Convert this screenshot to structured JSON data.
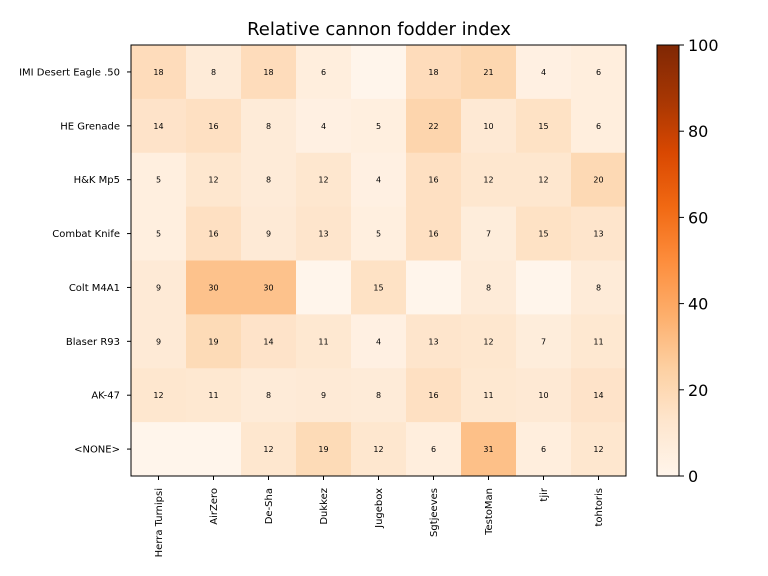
{
  "chart_data": {
    "type": "heatmap",
    "title": "Relative cannon fodder index",
    "rows": [
      "IMI Desert Eagle .50",
      "HE Grenade",
      "H&K Mp5",
      "Combat Knife",
      "Colt M4A1",
      "Blaser R93",
      "AK-47",
      "<NONE>"
    ],
    "columns": [
      "Herra Turnipsi",
      "AirZero",
      "De-Sha",
      "Dukkez",
      "Jugebox",
      "Sgtjeeves",
      "TestoMan",
      "tjir",
      "tohtoris"
    ],
    "values": [
      [
        18,
        8,
        18,
        6,
        null,
        18,
        21,
        4,
        6
      ],
      [
        14,
        16,
        8,
        4,
        5,
        22,
        10,
        15,
        6
      ],
      [
        5,
        12,
        8,
        12,
        4,
        16,
        12,
        12,
        20
      ],
      [
        5,
        16,
        9,
        13,
        5,
        16,
        7,
        15,
        13
      ],
      [
        9,
        30,
        30,
        null,
        15,
        null,
        8,
        null,
        8
      ],
      [
        9,
        19,
        14,
        11,
        4,
        13,
        12,
        7,
        11
      ],
      [
        12,
        11,
        8,
        9,
        8,
        16,
        11,
        10,
        14
      ],
      [
        null,
        null,
        12,
        19,
        12,
        6,
        31,
        6,
        12
      ]
    ],
    "colorbar": {
      "range": [
        0,
        100
      ],
      "ticks": [
        0,
        20,
        40,
        60,
        80,
        100
      ],
      "colormap": "Oranges",
      "stops": [
        "#fff5eb",
        "#fee6ce",
        "#fdd0a2",
        "#fdae6b",
        "#fd8d3c",
        "#f16913",
        "#d94801",
        "#a63603",
        "#7f2704"
      ]
    }
  }
}
